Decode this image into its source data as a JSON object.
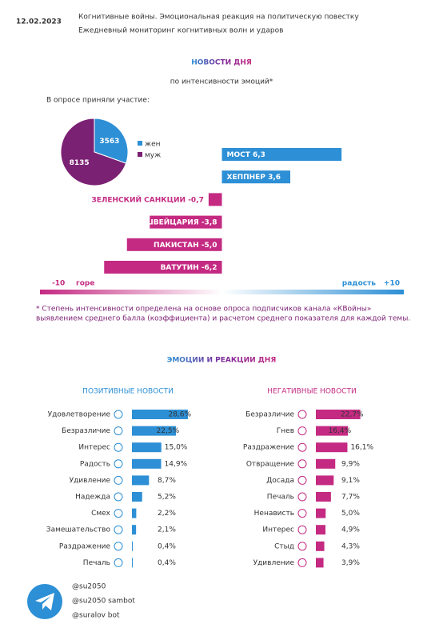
{
  "header": {
    "date": "12.02.2023",
    "lines": [
      "Когнитивные войны. Эмоциональная реакция на политическую повестку",
      "Ежедневный мониторинг когнитивных волн и ударов"
    ]
  },
  "section1": {
    "title": "НОВОСТИ ДНЯ",
    "subtitle": "по интенсивности эмоций*"
  },
  "chart_data": [
    {
      "type": "pie",
      "title": "В опросе приняли участие:",
      "categories": [
        "жен",
        "муж"
      ],
      "values": [
        3563,
        8135
      ],
      "colors": [
        "#2d8fd5",
        "#7b2173"
      ]
    },
    {
      "type": "diverging-bar",
      "categories": [
        "МОСТ",
        "ХЕППНЕР",
        "ЗЕЛЕНСКИЙ САНКЦИИ",
        "ШВЕЙЦАРИЯ",
        "ПАКИСТАН",
        "ВАТУТИН"
      ],
      "values": [
        6.3,
        3.6,
        -0.7,
        -3.8,
        -5.0,
        -6.2
      ],
      "value_labels": [
        "6,3",
        "3,6",
        "-0,7",
        "-3,8",
        "-5,0",
        "-6,2"
      ],
      "positive_color": "#2d8fd5",
      "negative_color": "#c42a82",
      "xlim": [
        -10,
        10
      ],
      "xticks": [
        -10,
        {
          "value": 10,
          "label": "+10"
        }
      ],
      "x_label_negative": "горе",
      "x_label_positive": "радость",
      "footnote": [
        "* Степень интенсивности определена на основе опроса подписчиков канала «КВойны»",
        "выявлением среднего балла (коэффициента) и расчетом среднего показателя для каждой темы."
      ]
    },
    {
      "type": "hbar",
      "title": "ПОЗИТИВНЫЕ НОВОСТИ",
      "color": "#2d8fd5",
      "categories": [
        "Удовлетворение",
        "Безразличие",
        "Интерес",
        "Радость",
        "Удивление",
        "Надежда",
        "Смех",
        "Замешательство",
        "Раздражение",
        "Печаль"
      ],
      "values": [
        28.6,
        22.5,
        15.0,
        14.9,
        8.7,
        5.2,
        2.2,
        2.1,
        0.4,
        0.4
      ],
      "value_labels": [
        "28,6%",
        "22,5%",
        "15,0%",
        "14,9%",
        "8,7%",
        "5,2%",
        "2,2%",
        "2,1%",
        "0,4%",
        "0,4%"
      ]
    },
    {
      "type": "hbar",
      "title": "НЕГАТИВНЫЕ НОВОСТИ",
      "color": "#c42a82",
      "categories": [
        "Безразличие",
        "Гнев",
        "Раздражение",
        "Отвращение",
        "Досада",
        "Печаль",
        "Ненависть",
        "Интерес",
        "Стыд",
        "Удивление"
      ],
      "values": [
        22.7,
        16.4,
        16.1,
        9.9,
        9.1,
        7.7,
        5.0,
        4.9,
        4.3,
        3.9
      ],
      "value_labels": [
        "22,7%",
        "16,4%",
        "16,1%",
        "9,9%",
        "9,1%",
        "7,7%",
        "5,0%",
        "4,9%",
        "4,3%",
        "3,9%"
      ]
    }
  ],
  "section2": {
    "title": "ЭМОЦИИ И РЕАКЦИИ ДНЯ"
  },
  "footer": {
    "handles": [
      "@su2050",
      "@su2050 sambot",
      "@suralov bot"
    ]
  }
}
